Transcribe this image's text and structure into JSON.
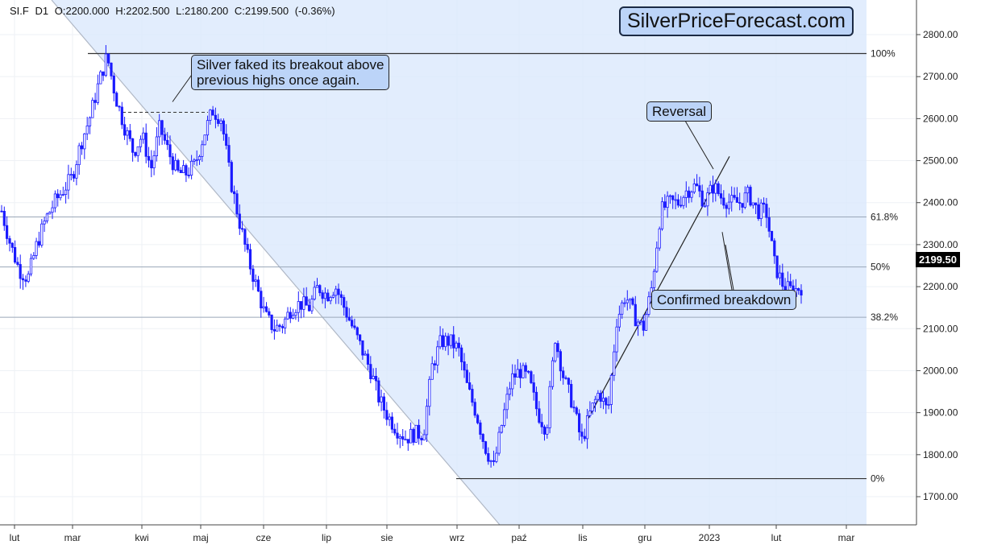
{
  "header": {
    "symbol": "SI.F",
    "timeframe": "D1",
    "open": "O:2200.000",
    "high": "H:2202.500",
    "low": "L:2180.200",
    "close": "C:2199.500",
    "change": "(-0.36%)"
  },
  "brand": "SilverPriceForecast.com",
  "annotations": {
    "fake_breakout": [
      "Silver faked its breakout above",
      "previous highs once again."
    ],
    "reversal": "Reversal",
    "breakdown": "Confirmed breakdown"
  },
  "last_price_label": "2199.50",
  "colors": {
    "candle": "#1a1aff",
    "zone": "#dbe8fd",
    "fib_line": "#9aa7b8",
    "trend_line": "#b0b8c6"
  },
  "chart_data": {
    "type": "candlestick",
    "ylim": [
      1640,
      2890
    ],
    "y_ticks": [
      "1700.00",
      "1800.00",
      "1900.00",
      "2000.00",
      "2100.00",
      "2200.00",
      "2300.00",
      "2400.00",
      "2500.00",
      "2600.00",
      "2700.00",
      "2800.00"
    ],
    "x_ticks": [
      "lut",
      "mar",
      "kwi",
      "maj",
      "cze",
      "lip",
      "sie",
      "wrz",
      "paź",
      "lis",
      "gru",
      "2023",
      "lut",
      "mar"
    ],
    "fibonacci": [
      {
        "label": "100%",
        "price": 2755
      },
      {
        "label": "61.8%",
        "price": 2366
      },
      {
        "label": "50%",
        "price": 2247
      },
      {
        "label": "38.2%",
        "price": 2127
      },
      {
        "label": "0%",
        "price": 1743
      }
    ],
    "closes": [
      2380,
      2300,
      2240,
      2220,
      2300,
      2360,
      2400,
      2430,
      2460,
      2540,
      2600,
      2680,
      2750,
      2650,
      2580,
      2520,
      2560,
      2480,
      2580,
      2520,
      2470,
      2470,
      2490,
      2560,
      2620,
      2600,
      2460,
      2360,
      2270,
      2200,
      2130,
      2100,
      2110,
      2150,
      2160,
      2150,
      2200,
      2180,
      2200,
      2150,
      2100,
      2050,
      2000,
      1930,
      1890,
      1860,
      1840,
      1850,
      1850,
      2010,
      2070,
      2070,
      2050,
      1960,
      1900,
      1820,
      1770,
      1880,
      1980,
      2000,
      1980,
      1900,
      1860,
      2080,
      1980,
      1920,
      1830,
      1900,
      1950,
      1900,
      2120,
      2180,
      2130,
      2100,
      2200,
      2380,
      2400,
      2400,
      2430,
      2440,
      2400,
      2440,
      2410,
      2400,
      2400,
      2420,
      2380,
      2380,
      2250,
      2200,
      2190,
      2199.5
    ],
    "last_close": 2199.5
  }
}
